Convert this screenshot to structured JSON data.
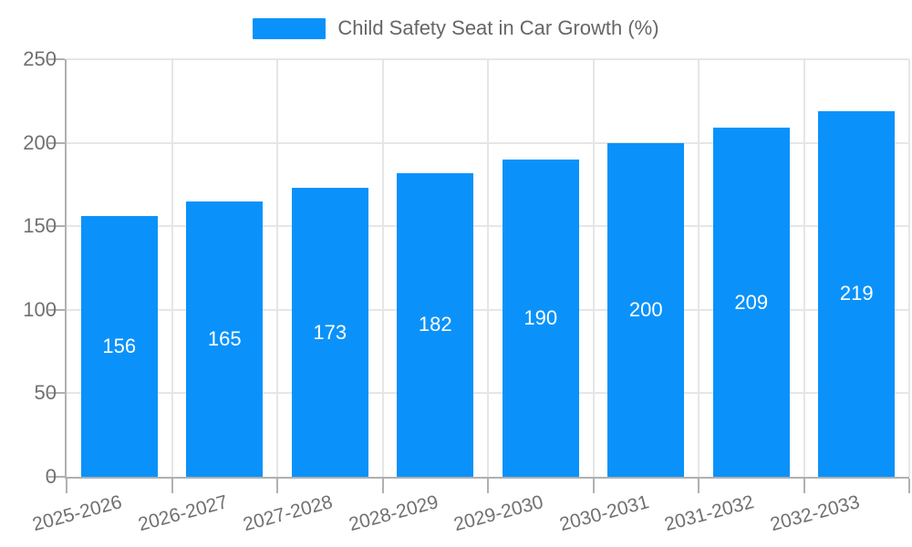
{
  "legend": {
    "label": "Child Safety Seat in Car Growth (%)"
  },
  "chart_data": {
    "type": "bar",
    "title": "Child Safety Seat in Car Growth (%)",
    "categories": [
      "2025-2026",
      "2026-2027",
      "2027-2028",
      "2028-2029",
      "2029-2030",
      "2030-2031",
      "2031-2032",
      "2032-2033"
    ],
    "values": [
      156,
      165,
      173,
      182,
      190,
      200,
      209,
      219
    ],
    "xlabel": "",
    "ylabel": "",
    "ylim": [
      0,
      250
    ],
    "yticks": [
      0,
      50,
      100,
      150,
      200,
      250
    ],
    "grid": true,
    "legend_position": "top-center",
    "value_labels": "inside-center",
    "colors": {
      "bar": "#0A92FA",
      "value_label": "#ffffff",
      "axis_text": "#707070",
      "legend_text": "#666666",
      "gridline": "#e6e6e6",
      "axis_line": "#b0b0b0"
    }
  }
}
